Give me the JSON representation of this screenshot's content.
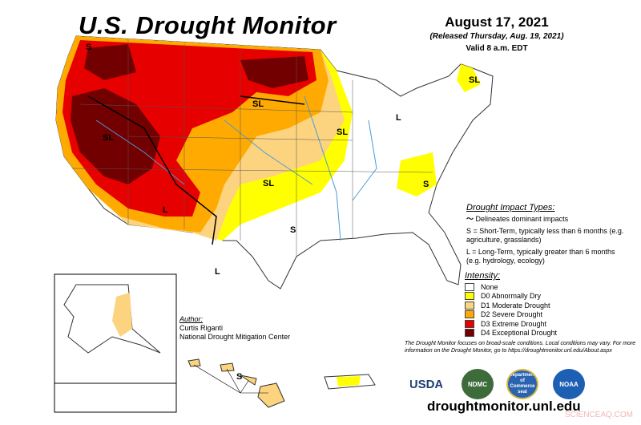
{
  "header": {
    "title": "U.S. Drought Monitor",
    "date": "August 17, 2021",
    "released": "(Released Thursday, Aug. 19, 2021)",
    "valid": "Valid 8 a.m. EDT"
  },
  "impact_types": {
    "heading": "Drought Impact Types:",
    "delineates": "Delineates dominant impacts",
    "short_term": "S = Short-Term, typically less than 6 months (e.g. agriculture, grasslands)",
    "long_term": "L = Long-Term, typically greater than 6 months (e.g. hydrology, ecology)"
  },
  "intensity": {
    "heading": "Intensity:",
    "items": [
      {
        "label": "None",
        "color": "#ffffff"
      },
      {
        "label": "D0 Abnormally Dry",
        "color": "#ffff00"
      },
      {
        "label": "D1 Moderate Drought",
        "color": "#fcd37f"
      },
      {
        "label": "D2 Severe Drought",
        "color": "#ffaa00"
      },
      {
        "label": "D3 Extreme Drought",
        "color": "#e60000"
      },
      {
        "label": "D4 Exceptional Drought",
        "color": "#730000"
      }
    ]
  },
  "author": {
    "heading": "Author:",
    "name": "Curtis Riganti",
    "org": "National Drought Mitigation Center"
  },
  "note": "The Drought Monitor focuses on broad-scale conditions. Local conditions may vary. For more information on the Drought Monitor, go to https://droughtmonitor.unl.edu/About.aspx",
  "logos": [
    "USDA",
    "NDMC",
    "Department of Commerce seal",
    "NOAA"
  ],
  "url": "droughtmonitor.unl.edu",
  "watermark": "SCIENCEAQ.COM",
  "map_labels": [
    "S",
    "SL",
    "SL",
    "SL",
    "SL",
    "SL",
    "L",
    "S",
    "S",
    "L",
    "L",
    "S",
    "S",
    "SL"
  ]
}
